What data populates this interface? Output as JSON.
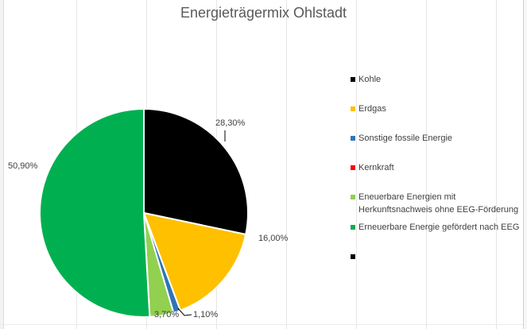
{
  "chart_data": {
    "type": "pie",
    "title": "Energieträgermix Ohlstadt",
    "legend_position": "right",
    "slices": [
      {
        "name": "Kohle",
        "value": 28.3,
        "label": "28,30%",
        "color": "#000000"
      },
      {
        "name": "Erdgas",
        "value": 16.0,
        "label": "16,00%",
        "color": "#FFC000"
      },
      {
        "name": "Sonstige fossile Energie",
        "value": 1.1,
        "label": "1,10%",
        "color": "#2E75B6"
      },
      {
        "name": "Kernkraft",
        "value": 0.0,
        "label": "",
        "color": "#FF0000"
      },
      {
        "name": "Eneuerbare Energien mit Herkunftsnachweis ohne EEG-Förderung",
        "value": 3.7,
        "label": "3,70%",
        "color": "#92D050"
      },
      {
        "name": "Erneuerbare Energie gefördert nach EEG",
        "value": 50.9,
        "label": "50,90%",
        "color": "#00B050"
      },
      {
        "name": "",
        "value": 0.0,
        "label": "",
        "color": "#000000"
      }
    ]
  },
  "legend": {
    "items": [
      {
        "lines": [
          "Kohle"
        ],
        "color": "#000000"
      },
      {
        "lines": [
          "Erdgas"
        ],
        "color": "#FFC000"
      },
      {
        "lines": [
          "Sonstige fossile Energie"
        ],
        "color": "#2E75B6"
      },
      {
        "lines": [
          "Kernkraft"
        ],
        "color": "#FF0000"
      },
      {
        "lines": [
          "Eneuerbare Energien mit",
          "Herkunftsnachweis ohne EEG-Förderung"
        ],
        "color": "#92D050"
      },
      {
        "lines": [
          "Erneuerbare Energie gefördert nach EEG"
        ],
        "color": "#00B050"
      },
      {
        "lines": [
          ""
        ],
        "color": "#000000"
      }
    ]
  }
}
